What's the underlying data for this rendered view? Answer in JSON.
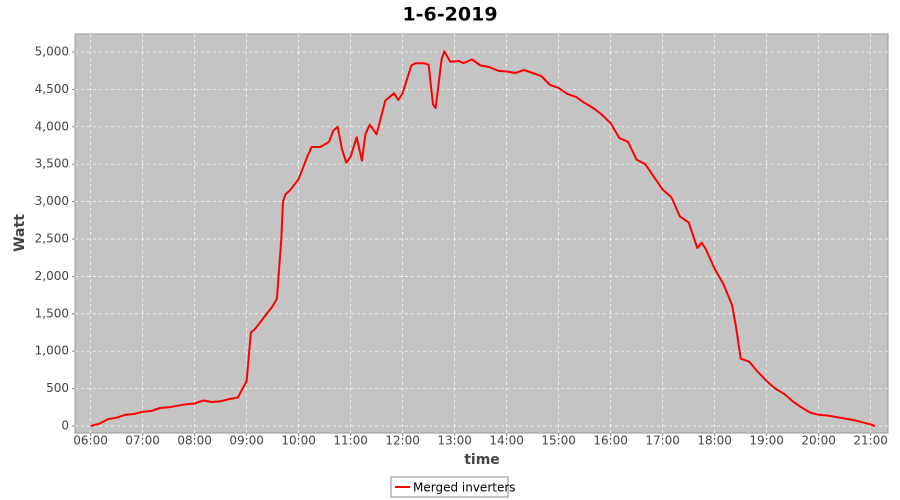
{
  "chart_data": {
    "type": "line",
    "title": "1-6-2019",
    "xlabel": "time",
    "ylabel": "Watt",
    "x": [
      "06:00",
      "06:10",
      "06:20",
      "06:30",
      "06:40",
      "06:50",
      "07:00",
      "07:10",
      "07:20",
      "07:30",
      "07:40",
      "07:50",
      "08:00",
      "08:10",
      "08:20",
      "08:30",
      "08:40",
      "08:50",
      "09:00",
      "09:05",
      "09:10",
      "09:20",
      "09:30",
      "09:35",
      "09:40",
      "09:42",
      "09:45",
      "09:50",
      "10:00",
      "10:10",
      "10:15",
      "10:25",
      "10:35",
      "10:40",
      "10:45",
      "10:50",
      "10:55",
      "11:00",
      "11:07",
      "11:13",
      "11:17",
      "11:22",
      "11:30",
      "11:40",
      "11:50",
      "11:55",
      "12:00",
      "12:10",
      "12:15",
      "12:25",
      "12:30",
      "12:35",
      "12:38",
      "12:45",
      "12:48",
      "12:55",
      "13:05",
      "13:10",
      "13:20",
      "13:30",
      "13:40",
      "13:50",
      "14:00",
      "14:10",
      "14:20",
      "14:30",
      "14:40",
      "14:50",
      "15:00",
      "15:10",
      "15:20",
      "15:30",
      "15:40",
      "15:50",
      "16:00",
      "16:10",
      "16:20",
      "16:30",
      "16:40",
      "16:50",
      "17:00",
      "17:10",
      "17:20",
      "17:30",
      "17:40",
      "17:45",
      "17:50",
      "18:00",
      "18:10",
      "18:20",
      "18:25",
      "18:30",
      "18:40",
      "18:50",
      "19:00",
      "19:10",
      "19:20",
      "19:30",
      "19:40",
      "19:50",
      "20:00",
      "20:10",
      "20:20",
      "20:30",
      "20:40",
      "20:50",
      "21:00",
      "21:05"
    ],
    "series": [
      {
        "name": "Merged inverters",
        "color": "#ff0000",
        "values": [
          0,
          30,
          90,
          110,
          150,
          160,
          190,
          200,
          240,
          250,
          270,
          290,
          300,
          340,
          320,
          330,
          360,
          380,
          600,
          1250,
          1300,
          1450,
          1600,
          1700,
          2500,
          3000,
          3100,
          3150,
          3300,
          3600,
          3730,
          3730,
          3800,
          3950,
          4000,
          3700,
          3520,
          3600,
          3860,
          3550,
          3900,
          4030,
          3900,
          4350,
          4450,
          4360,
          4450,
          4820,
          4850,
          4850,
          4830,
          4300,
          4250,
          4900,
          5010,
          4870,
          4880,
          4850,
          4900,
          4820,
          4800,
          4750,
          4740,
          4720,
          4760,
          4720,
          4680,
          4560,
          4520,
          4440,
          4400,
          4320,
          4250,
          4160,
          4050,
          3850,
          3800,
          3560,
          3500,
          3330,
          3160,
          3060,
          2800,
          2720,
          2380,
          2450,
          2360,
          2100,
          1900,
          1620,
          1300,
          900,
          860,
          720,
          600,
          500,
          430,
          330,
          250,
          180,
          150,
          140,
          120,
          100,
          80,
          50,
          20,
          0
        ]
      }
    ],
    "xlim": [
      "05:42",
      "21:20"
    ],
    "xticks": [
      "06:00",
      "07:00",
      "08:00",
      "09:00",
      "10:00",
      "11:00",
      "12:00",
      "13:00",
      "14:00",
      "15:00",
      "16:00",
      "17:00",
      "18:00",
      "19:00",
      "20:00",
      "21:00"
    ],
    "ylim": [
      -94,
      5241
    ],
    "yticks": [
      0,
      500,
      {
        "value": 1000,
        "label": "1,000"
      },
      {
        "value": 1500,
        "label": "1,500"
      },
      {
        "value": 2000,
        "label": "2,000"
      },
      {
        "value": 2500,
        "label": "2,500"
      },
      {
        "value": 3000,
        "label": "3,000"
      },
      {
        "value": 3500,
        "label": "3,500"
      },
      {
        "value": 4000,
        "label": "4,000"
      },
      {
        "value": 4500,
        "label": "4,500"
      },
      {
        "value": 5000,
        "label": "5,000"
      }
    ],
    "grid": true,
    "legend": "bottom"
  }
}
